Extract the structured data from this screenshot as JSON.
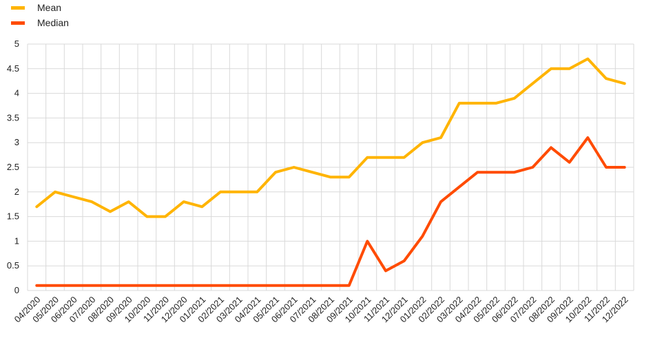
{
  "legend": {
    "mean_label": "Mean",
    "median_label": "Median",
    "mean_color": "#FFB400",
    "median_color": "#FF4B00"
  },
  "chart_data": {
    "type": "line",
    "x": [
      "04/2020",
      "05/2020",
      "06/2020",
      "07/2020",
      "08/2020",
      "09/2020",
      "10/2020",
      "11/2020",
      "12/2020",
      "01/2021",
      "02/2021",
      "03/2021",
      "04/2021",
      "05/2021",
      "06/2021",
      "07/2021",
      "08/2021",
      "09/2021",
      "10/2021",
      "11/2021",
      "12/2021",
      "01/2022",
      "02/2022",
      "03/2022",
      "04/2022",
      "05/2022",
      "06/2022",
      "07/2022",
      "08/2022",
      "09/2022",
      "10/2022",
      "11/2022",
      "12/2022"
    ],
    "series": [
      {
        "name": "Mean",
        "color": "#FFB400",
        "values": [
          1.7,
          2.0,
          1.9,
          1.8,
          1.6,
          1.8,
          1.5,
          1.5,
          1.8,
          1.7,
          2.0,
          2.0,
          2.0,
          2.4,
          2.5,
          2.4,
          2.3,
          2.3,
          2.7,
          2.7,
          2.7,
          3.0,
          3.1,
          3.8,
          3.8,
          3.8,
          3.9,
          4.2,
          4.5,
          4.5,
          4.7,
          4.3,
          4.2
        ]
      },
      {
        "name": "Median",
        "color": "#FF4B00",
        "values": [
          0.1,
          0.1,
          0.1,
          0.1,
          0.1,
          0.1,
          0.1,
          0.1,
          0.1,
          0.1,
          0.1,
          0.1,
          0.1,
          0.1,
          0.1,
          0.1,
          0.1,
          0.1,
          1.0,
          0.4,
          0.6,
          1.1,
          1.8,
          2.1,
          2.4,
          2.4,
          2.4,
          2.5,
          2.9,
          2.6,
          3.1,
          2.5,
          2.5
        ]
      }
    ],
    "y_ticks": [
      "0",
      "0.5",
      "1",
      "1.5",
      "2",
      "2.5",
      "3",
      "3.5",
      "4",
      "4.5",
      "5"
    ],
    "ylim": [
      0,
      5
    ],
    "grid": true,
    "legend_position": "top-left"
  }
}
